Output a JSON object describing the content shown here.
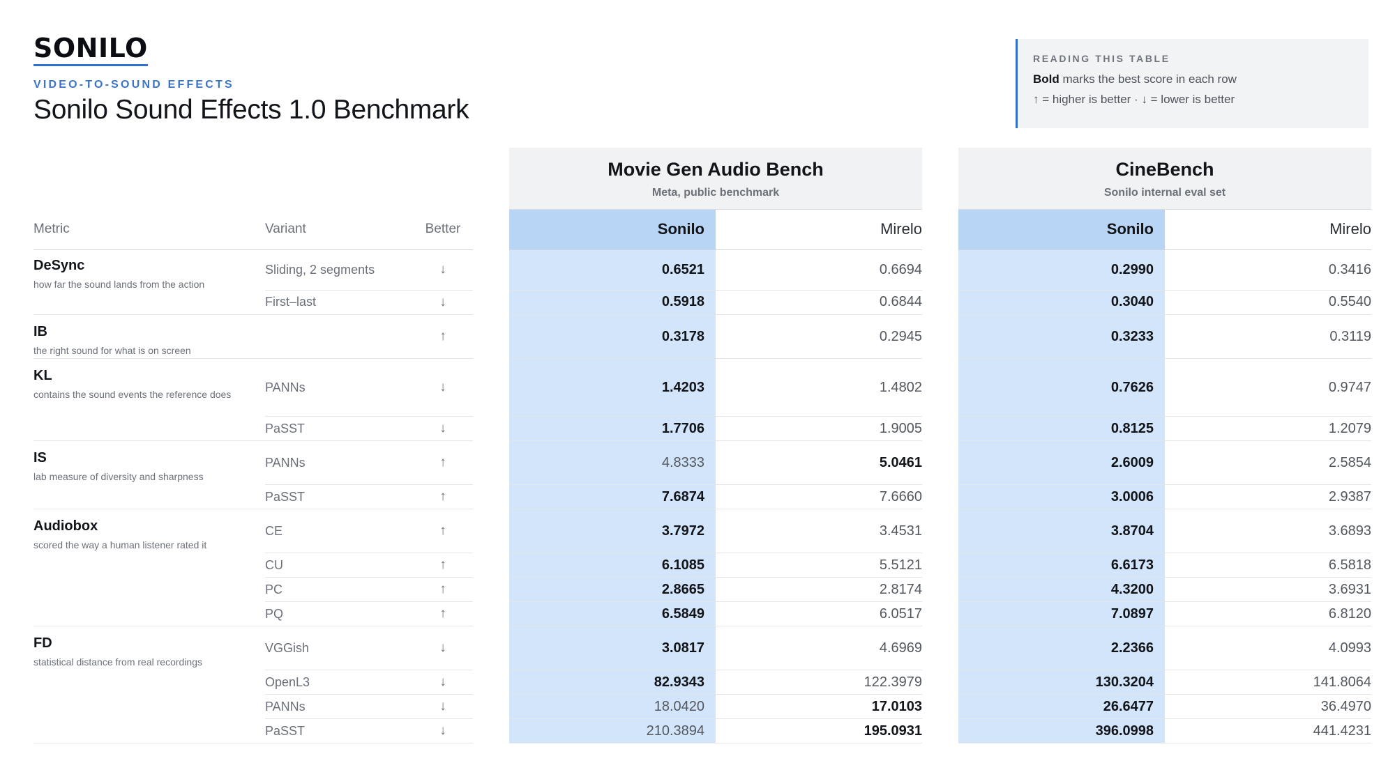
{
  "brand": "SONILO",
  "eyebrow": "VIDEO-TO-SOUND EFFECTS",
  "title": "Sonilo Sound Effects 1.0 Benchmark",
  "note": {
    "heading": "READING THIS TABLE",
    "bold": "Bold",
    "line1": "marks the best score in each row",
    "line2": "↑ = higher is better · ↓ = lower is better"
  },
  "groups": [
    {
      "name": "Movie Gen Audio Bench",
      "sub": "Meta, public benchmark"
    },
    {
      "name": "CineBench",
      "sub": "Sonilo internal eval set"
    }
  ],
  "headers": {
    "metric": "Metric",
    "variant": "Variant",
    "better": "Better",
    "g1_sonilo": "Sonilo",
    "g1_mirelo": "Mirelo",
    "g2_sonilo": "Sonilo",
    "g2_mirelo": "Mirelo"
  },
  "rows": [
    {
      "metric": "DeSync",
      "desc": "how far the sound lands from the action",
      "span": 2,
      "h": 58,
      "variant": "Sliding, 2 segments",
      "better": "↓",
      "g1s": "0.6521",
      "g1m": "0.6694",
      "g2s": "0.2990",
      "g2m": "0.3416",
      "g1best": "s",
      "g2best": "s"
    },
    {
      "h": 35,
      "variant": "First–last",
      "better": "↓",
      "g1s": "0.5918",
      "g1m": "0.6844",
      "g2s": "0.3040",
      "g2m": "0.5540",
      "g1best": "s",
      "g2best": "s"
    },
    {
      "metric": "IB",
      "desc": "the right sound for what is on screen",
      "span": 1,
      "h": 63,
      "variant": "",
      "better": "↑",
      "g1s": "0.3178",
      "g1m": "0.2945",
      "g2s": "0.3233",
      "g2m": "0.3119",
      "g1best": "s",
      "g2best": "s"
    },
    {
      "metric": "KL",
      "desc": "contains the sound events the reference does",
      "span": 2,
      "h": 83,
      "variant": "PANNs",
      "better": "↓",
      "g1s": "1.4203",
      "g1m": "1.4802",
      "g2s": "0.7626",
      "g2m": "0.9747",
      "g1best": "s",
      "g2best": "s"
    },
    {
      "h": 35,
      "variant": "PaSST",
      "better": "↓",
      "g1s": "1.7706",
      "g1m": "1.9005",
      "g2s": "0.8125",
      "g2m": "1.2079",
      "g1best": "s",
      "g2best": "s"
    },
    {
      "metric": "IS",
      "desc": "lab measure of diversity and sharpness",
      "span": 2,
      "h": 63,
      "variant": "PANNs",
      "better": "↑",
      "g1s": "4.8333",
      "g1m": "5.0461",
      "g2s": "2.6009",
      "g2m": "2.5854",
      "g1best": "m",
      "g2best": "s"
    },
    {
      "h": 35,
      "variant": "PaSST",
      "better": "↑",
      "g1s": "7.6874",
      "g1m": "7.6660",
      "g2s": "3.0006",
      "g2m": "2.9387",
      "g1best": "s",
      "g2best": "s"
    },
    {
      "metric": "Audiobox",
      "desc": "scored the way a human listener rated it",
      "span": 4,
      "h": 63,
      "variant": "CE",
      "better": "↑",
      "g1s": "3.7972",
      "g1m": "3.4531",
      "g2s": "3.8704",
      "g2m": "3.6893",
      "g1best": "s",
      "g2best": "s"
    },
    {
      "h": 35,
      "variant": "CU",
      "better": "↑",
      "g1s": "6.1085",
      "g1m": "5.5121",
      "g2s": "6.6173",
      "g2m": "6.5818",
      "g1best": "s",
      "g2best": "s"
    },
    {
      "h": 35,
      "variant": "PC",
      "better": "↑",
      "g1s": "2.8665",
      "g1m": "2.8174",
      "g2s": "4.3200",
      "g2m": "3.6931",
      "g1best": "s",
      "g2best": "s"
    },
    {
      "h": 35,
      "variant": "PQ",
      "better": "↑",
      "g1s": "6.5849",
      "g1m": "6.0517",
      "g2s": "7.0897",
      "g2m": "6.8120",
      "g1best": "s",
      "g2best": "s"
    },
    {
      "metric": "FD",
      "desc": "statistical distance from real recordings",
      "span": 4,
      "h": 63,
      "variant": "VGGish",
      "better": "↓",
      "g1s": "3.0817",
      "g1m": "4.6969",
      "g2s": "2.2366",
      "g2m": "4.0993",
      "g1best": "s",
      "g2best": "s"
    },
    {
      "h": 35,
      "variant": "OpenL3",
      "better": "↓",
      "g1s": "82.9343",
      "g1m": "122.3979",
      "g2s": "130.3204",
      "g2m": "141.8064",
      "g1best": "s",
      "g2best": "s"
    },
    {
      "h": 35,
      "variant": "PANNs",
      "better": "↓",
      "g1s": "18.0420",
      "g1m": "17.0103",
      "g2s": "26.6477",
      "g2m": "36.4970",
      "g1best": "m",
      "g2best": "s"
    },
    {
      "h": 35,
      "variant": "PaSST",
      "better": "↓",
      "g1s": "210.3894",
      "g1m": "195.0931",
      "g2s": "396.0998",
      "g2m": "441.4231",
      "g1best": "m",
      "g2best": "s"
    }
  ]
}
